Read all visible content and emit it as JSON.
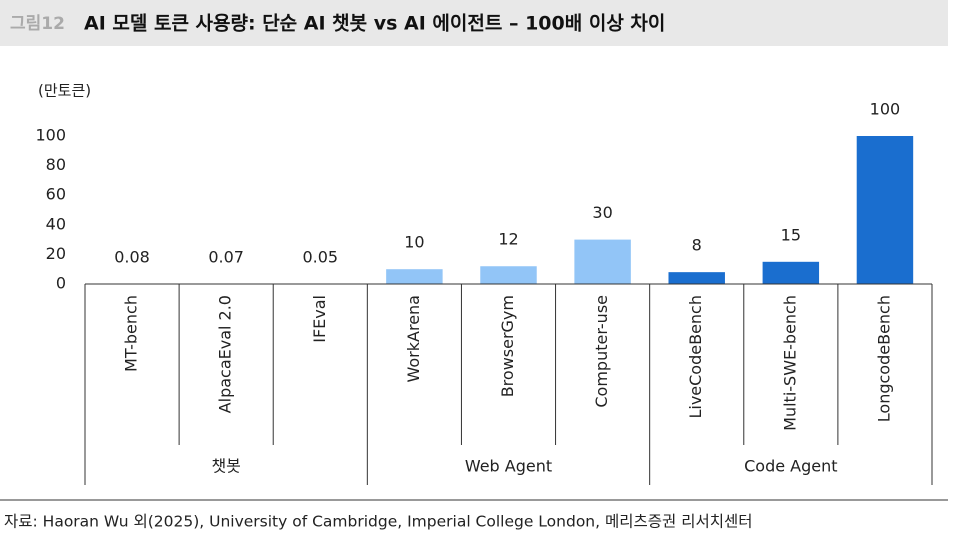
{
  "figure_label": "그림12",
  "chart_data": {
    "type": "bar",
    "title": "AI 모델 토큰 사용량: 단순 AI 챗봇 vs AI 에이전트 – 100배 이상 차이",
    "y_label": "(만토큰)",
    "categories": [
      "MT-bench",
      "AlpacaEval 2.0",
      "IFEval",
      "WorkArena",
      "BrowserGym",
      "Computer-use",
      "LiveCodeBench",
      "Multi-SWE-bench",
      "LongcodeBench"
    ],
    "series": [
      {
        "name": "챗봇",
        "color": "#1a6ecf",
        "values": [
          0.08,
          0.07,
          0.05,
          null,
          null,
          null,
          null,
          null,
          null
        ]
      },
      {
        "name": "Web Agent",
        "color": "#92c5f7",
        "values": [
          null,
          null,
          null,
          10,
          12,
          30,
          null,
          null,
          null
        ]
      },
      {
        "name": "Code Agent",
        "color": "#1a6ecf",
        "values": [
          null,
          null,
          null,
          null,
          null,
          null,
          8,
          15,
          100
        ]
      }
    ],
    "ylim": [
      0,
      100
    ],
    "yticks": [
      0,
      20,
      40,
      60,
      80,
      100
    ],
    "grid": false
  },
  "source": "자료: Haoran Wu 외(2025), University of Cambridge, Imperial College London, 메리츠증권 리서치센터"
}
